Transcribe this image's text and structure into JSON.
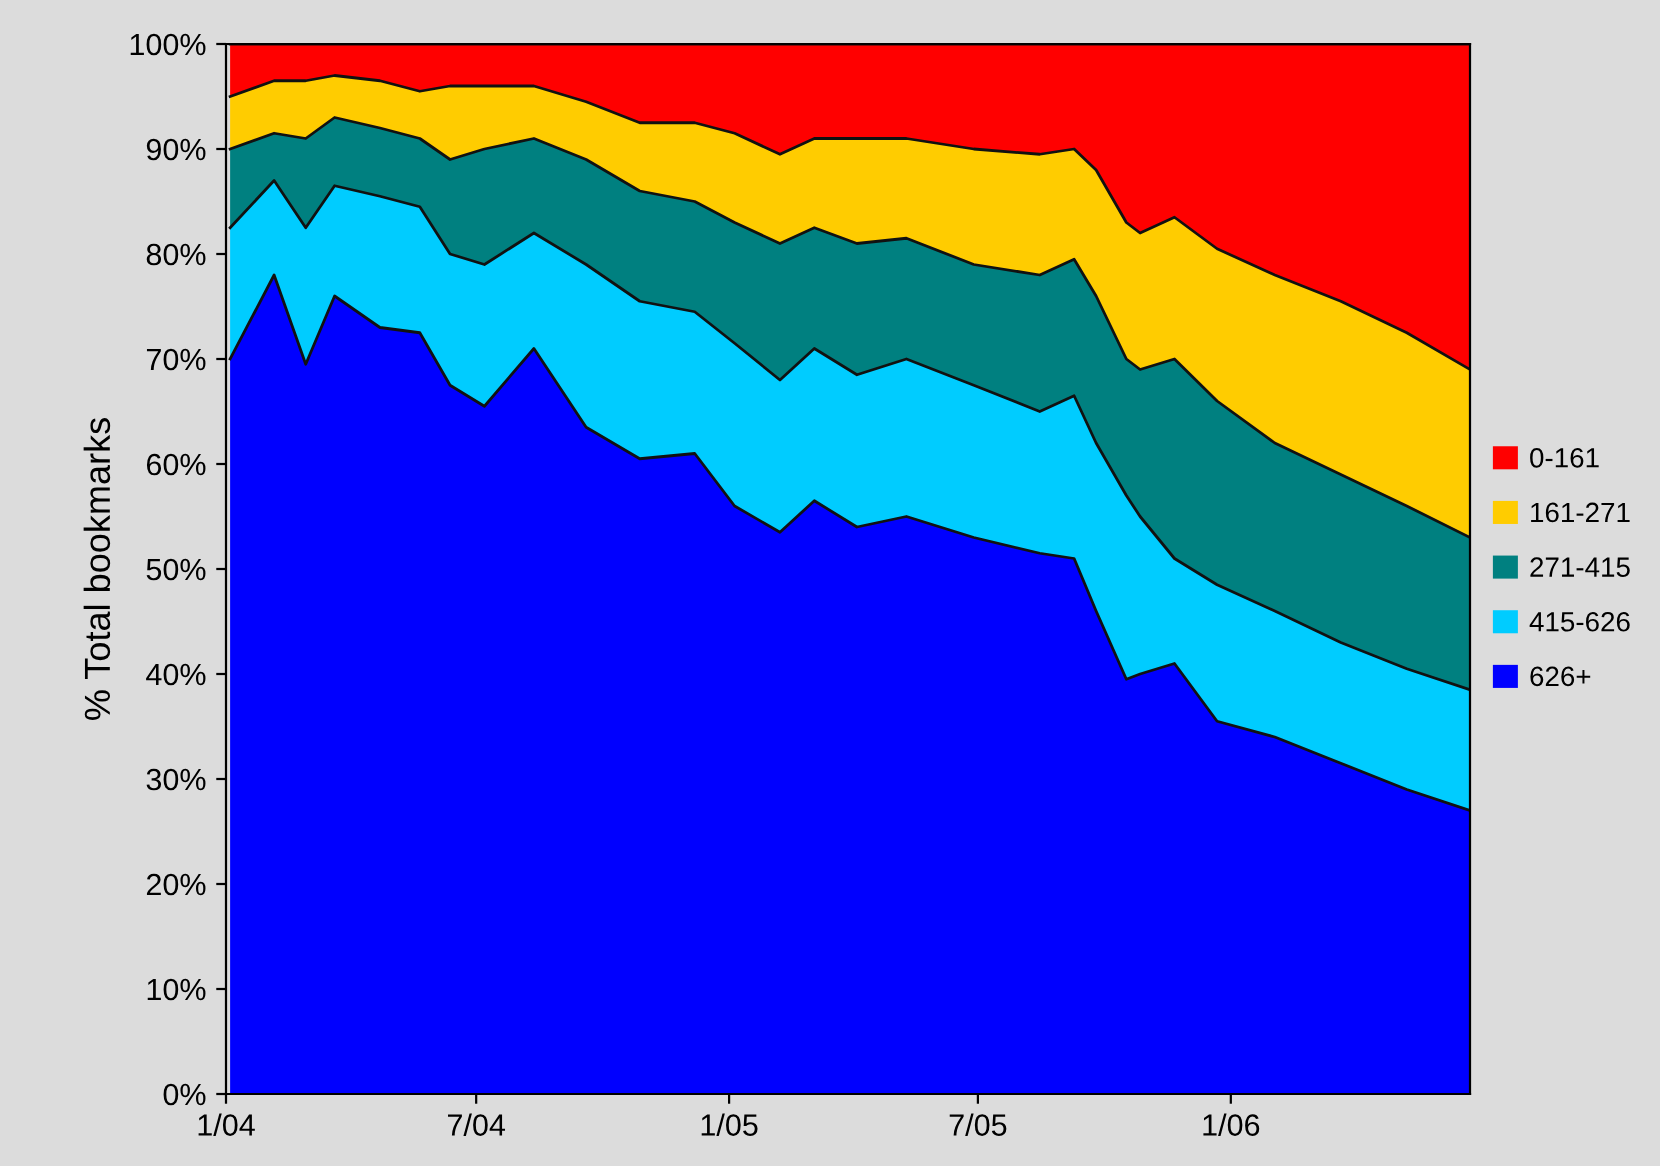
{
  "chart_data": {
    "type": "area",
    "stacked": true,
    "ylabel": "% Total bookmarks",
    "x": [
      "2004-01-04",
      "2004-02-05",
      "2004-02-28",
      "2004-03-20",
      "2004-04-22",
      "2004-05-21",
      "2004-06-12",
      "2004-07-07",
      "2004-08-12",
      "2004-09-19",
      "2004-10-28",
      "2004-12-07",
      "2005-01-05",
      "2005-02-07",
      "2005-03-04",
      "2005-04-04",
      "2005-05-10",
      "2005-06-28",
      "2005-08-15",
      "2005-09-09",
      "2005-09-25",
      "2005-10-17",
      "2005-10-27",
      "2005-11-21",
      "2005-12-22",
      "2006-02-02",
      "2006-03-22",
      "2006-05-09",
      "2006-06-24"
    ],
    "series": [
      {
        "name": "626+",
        "color": "#0000ff",
        "values": [
          70,
          78,
          69.5,
          76,
          73,
          72.5,
          67.5,
          65.5,
          71,
          63.5,
          60.5,
          61,
          56,
          53.5,
          56.5,
          54,
          55,
          53,
          51.5,
          51,
          46,
          39.5,
          40,
          41,
          35.5,
          34,
          31.5,
          29,
          27
        ]
      },
      {
        "name": "415-626",
        "color": "#00ccff",
        "values": [
          12.5,
          9,
          13,
          10.5,
          12.5,
          12,
          12.5,
          13.5,
          11,
          15.5,
          15,
          13.5,
          15.5,
          14.5,
          14.5,
          14.5,
          15,
          14.5,
          13.5,
          15.5,
          16,
          17.5,
          15,
          10,
          13,
          12,
          11.5,
          11.5,
          11.5
        ]
      },
      {
        "name": "271-415",
        "color": "#008080",
        "values": [
          7.5,
          4.5,
          8.5,
          6.5,
          6.5,
          6.5,
          9,
          11,
          9,
          10,
          10.5,
          10.5,
          11.5,
          13,
          11.5,
          12.5,
          11.5,
          11.5,
          13,
          13,
          14,
          13,
          14,
          19,
          17.5,
          16,
          16,
          15.5,
          14.5
        ]
      },
      {
        "name": "161-271",
        "color": "#ffcc00",
        "values": [
          5,
          5,
          5.5,
          4,
          4.5,
          4.5,
          7,
          6,
          5,
          5.5,
          6.5,
          7.5,
          8.5,
          8.5,
          8.5,
          10,
          9.5,
          11,
          11.5,
          10.5,
          12,
          13,
          13,
          13.5,
          14.5,
          16,
          16.5,
          16.5,
          16
        ]
      },
      {
        "name": "0-161",
        "color": "#ff0000",
        "values": [
          5,
          3.5,
          3.5,
          3,
          3.5,
          4.5,
          4,
          4,
          4,
          5.5,
          7.5,
          7.5,
          8.5,
          10.5,
          9,
          9,
          9,
          10,
          10.5,
          10,
          12,
          17,
          18,
          16.5,
          19.5,
          22,
          24.5,
          27.5,
          31
        ]
      }
    ],
    "xlim": [
      "2004-01-01",
      "2006-06-24"
    ],
    "xticks": [
      {
        "value": "2004-01-01",
        "label": "1/04"
      },
      {
        "value": "2004-07-01",
        "label": "7/04"
      },
      {
        "value": "2005-01-01",
        "label": "1/05"
      },
      {
        "value": "2005-07-01",
        "label": "7/05"
      },
      {
        "value": "2006-01-01",
        "label": "1/06"
      }
    ],
    "ylim": [
      0,
      100
    ],
    "yticks": [
      {
        "value": 0,
        "label": "0%"
      },
      {
        "value": 10,
        "label": "10%"
      },
      {
        "value": 20,
        "label": "20%"
      },
      {
        "value": 30,
        "label": "30%"
      },
      {
        "value": 40,
        "label": "40%"
      },
      {
        "value": 50,
        "label": "50%"
      },
      {
        "value": 60,
        "label": "60%"
      },
      {
        "value": 70,
        "label": "70%"
      },
      {
        "value": 80,
        "label": "80%"
      },
      {
        "value": 90,
        "label": "90%"
      },
      {
        "value": 100,
        "label": "100%"
      }
    ],
    "grid": false,
    "legend": "right"
  }
}
